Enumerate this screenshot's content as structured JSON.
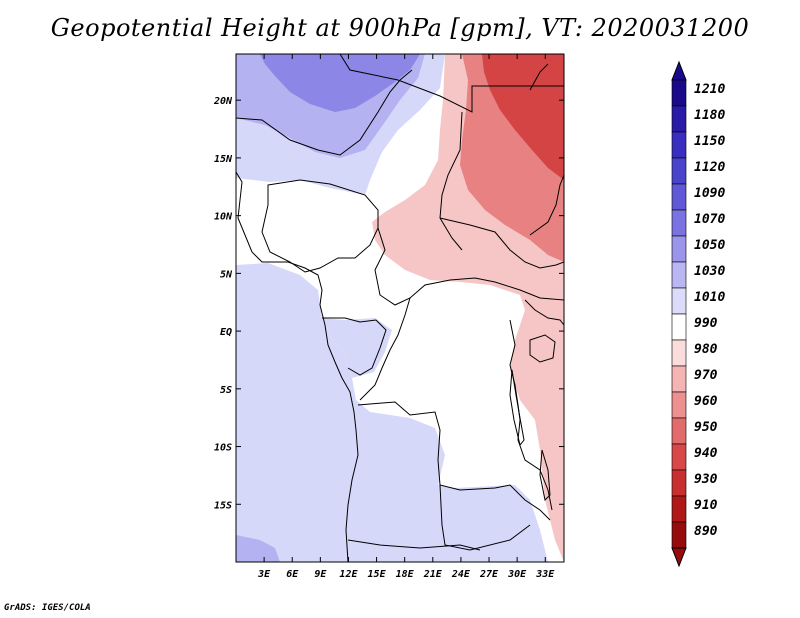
{
  "title": "Geopotential Height at 900hPa [gpm], VT: 2020031200",
  "footer": "GrADS: IGES/COLA",
  "map": {
    "lon_range": [
      0,
      35
    ],
    "lat_range": [
      -20,
      24
    ],
    "lon_ticks": [
      "3E",
      "6E",
      "9E",
      "12E",
      "15E",
      "18E",
      "21E",
      "24E",
      "27E",
      "30E",
      "33E"
    ],
    "lon_tick_values": [
      3,
      6,
      9,
      12,
      15,
      18,
      21,
      24,
      27,
      30,
      33
    ],
    "lat_ticks": [
      "20N",
      "15N",
      "10N",
      "5N",
      "EQ",
      "5S",
      "10S",
      "15S"
    ],
    "lat_tick_values": [
      20,
      15,
      10,
      5,
      0,
      -5,
      -10,
      -15
    ]
  },
  "legend": {
    "labels": [
      "1210",
      "1180",
      "1150",
      "1120",
      "1090",
      "1070",
      "1050",
      "1030",
      "1010",
      "990",
      "980",
      "970",
      "960",
      "950",
      "940",
      "930",
      "910",
      "890"
    ],
    "colors": [
      "#1a0a8a",
      "#2a1aa8",
      "#3a2ec0",
      "#4a44cc",
      "#6058d6",
      "#7a72e0",
      "#9a94ea",
      "#bab6f2",
      "#dcdbfa",
      "#ffffff",
      "#fadcdc",
      "#f4b4b4",
      "#ec9090",
      "#e26c6c",
      "#d84848",
      "#c83030",
      "#b01818",
      "#960c0c"
    ]
  },
  "colors": {
    "ocean_blue": "#d6d8fa",
    "sahara_blue": "#b4b2f0",
    "north_blue": "#8c86e6",
    "east_pink": "#f6c6c6",
    "east_red": "#e88282",
    "east_deep": "#d44444",
    "border": "#000000"
  }
}
